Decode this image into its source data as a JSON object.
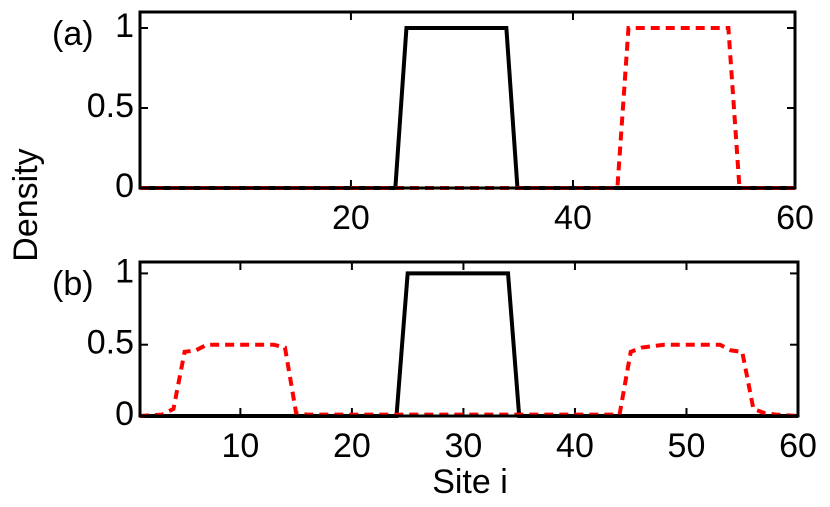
{
  "chart_data": [
    {
      "type": "line",
      "annotation": "(a)",
      "y_label": "Density",
      "xlim": [
        1,
        60
      ],
      "ylim": [
        0,
        1.1
      ],
      "xticks": [
        20,
        40,
        60
      ],
      "yticks": [
        0,
        0.5,
        1
      ],
      "series": [
        {
          "color": "#000000",
          "style": "solid",
          "x": [
            1,
            24,
            25,
            34,
            35,
            60
          ],
          "values": [
            0,
            0,
            1,
            1,
            0,
            0
          ]
        },
        {
          "color": "#ff0000",
          "style": "dashed",
          "x": [
            1,
            44,
            45,
            54,
            55,
            60
          ],
          "values": [
            0,
            0,
            1,
            1,
            0,
            0
          ]
        }
      ]
    },
    {
      "type": "line",
      "annotation": "(b)",
      "x_label": "Site i",
      "xlim": [
        1,
        60
      ],
      "ylim": [
        0,
        1.08
      ],
      "xticks": [
        10,
        20,
        30,
        40,
        50,
        60
      ],
      "yticks": [
        0,
        0.5,
        1
      ],
      "series": [
        {
          "color": "#000000",
          "style": "solid",
          "x": [
            1,
            24,
            25,
            34,
            35,
            60
          ],
          "values": [
            0,
            0,
            1,
            1,
            0,
            0
          ]
        },
        {
          "color": "#ff0000",
          "style": "dashed",
          "x": [
            1,
            3,
            4,
            5,
            6,
            7,
            13,
            14,
            15,
            16,
            44,
            45,
            46,
            47,
            48,
            53,
            54,
            55,
            56,
            57,
            58,
            60
          ],
          "values": [
            0,
            0.01,
            0.05,
            0.45,
            0.46,
            0.5,
            0.5,
            0.48,
            0.02,
            0.01,
            0.01,
            0.45,
            0.48,
            0.49,
            0.5,
            0.5,
            0.46,
            0.45,
            0.05,
            0.02,
            0.01,
            0
          ]
        }
      ]
    }
  ]
}
